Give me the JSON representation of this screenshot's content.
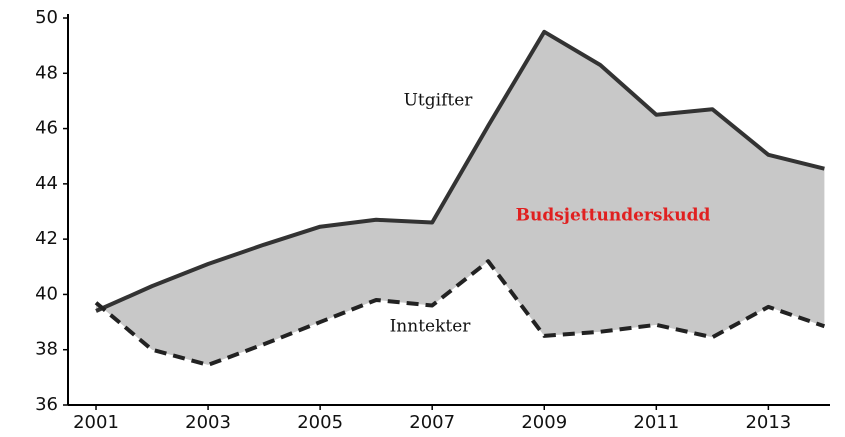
{
  "chart_data": {
    "type": "line",
    "x": [
      2001,
      2002,
      2003,
      2004,
      2005,
      2006,
      2007,
      2008,
      2009,
      2010,
      2011,
      2012,
      2013,
      2014
    ],
    "series": [
      {
        "name": "Utgifter",
        "color": "#333333",
        "dashed": false,
        "values": [
          39.4,
          40.3,
          41.1,
          41.8,
          42.45,
          42.7,
          42.6,
          46.1,
          49.5,
          48.3,
          46.5,
          46.7,
          45.05,
          44.55
        ]
      },
      {
        "name": "Inntekter",
        "color": "#222222",
        "dashed": true,
        "values": [
          39.7,
          38.0,
          37.45,
          38.2,
          39.0,
          39.8,
          39.6,
          41.2,
          38.5,
          38.65,
          38.9,
          38.45,
          39.55,
          38.85
        ]
      }
    ],
    "fill_between": {
      "label": "Budsjettunderskudd",
      "color": "#c8c8c8",
      "label_color": "#e02020"
    },
    "xlim": [
      2000.5,
      2014.1
    ],
    "xticks": [
      2001,
      2003,
      2005,
      2007,
      2009,
      2011,
      2013
    ],
    "ylim": [
      36,
      50
    ],
    "yticks": [
      36,
      38,
      40,
      42,
      44,
      46,
      48,
      50
    ],
    "grid": false
  }
}
